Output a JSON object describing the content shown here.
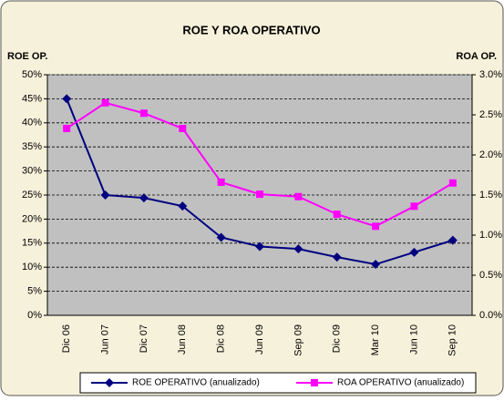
{
  "chart_data": {
    "type": "line",
    "title": "ROE Y ROA OPERATIVO",
    "y_label": "ROE OP.",
    "y2_label": "ROA OP.",
    "categories": [
      "Dic 06",
      "Jun 07",
      "Dic 07",
      "Jun 08",
      "Dic 08",
      "Jun 09",
      "Sep 09",
      "Dic 09",
      "Mar 10",
      "Jun 10",
      "Sep 10"
    ],
    "series": [
      {
        "name": "ROE OPERATIVO (anualizado)",
        "color": "#000080",
        "marker": "diamond",
        "values": [
          45,
          25,
          24.4,
          22.7,
          16.2,
          14.3,
          13.8,
          12.1,
          10.6,
          13.1,
          15.6
        ]
      },
      {
        "name": "ROA OPERATIVO (anualizado)",
        "color": "#ff00ff",
        "marker": "square",
        "axis": "y2",
        "values": [
          2.33,
          2.65,
          2.52,
          2.33,
          1.66,
          1.51,
          1.48,
          1.26,
          1.11,
          1.36,
          1.65
        ]
      }
    ],
    "ylim": [
      0,
      50
    ],
    "yticks": [
      {
        "value": 0,
        "label": "0%"
      },
      {
        "value": 5,
        "label": "5%"
      },
      {
        "value": 10,
        "label": "10%"
      },
      {
        "value": 15,
        "label": "15%"
      },
      {
        "value": 20,
        "label": "20%"
      },
      {
        "value": 25,
        "label": "25%"
      },
      {
        "value": 30,
        "label": "30%"
      },
      {
        "value": 35,
        "label": "35%"
      },
      {
        "value": 40,
        "label": "40%"
      },
      {
        "value": 45,
        "label": "45%"
      },
      {
        "value": 50,
        "label": "50%"
      }
    ],
    "y2lim": [
      0,
      3
    ],
    "y2ticks": [
      {
        "value": 0,
        "label": "0.0%"
      },
      {
        "value": 0.5,
        "label": "0.5%"
      },
      {
        "value": 1,
        "label": "1.0%"
      },
      {
        "value": 1.5,
        "label": "1.5%"
      },
      {
        "value": 2,
        "label": "2.0%"
      },
      {
        "value": 2.5,
        "label": "2.5%"
      },
      {
        "value": 3,
        "label": "3.0%"
      }
    ],
    "grid": true,
    "legend": "bottom"
  }
}
